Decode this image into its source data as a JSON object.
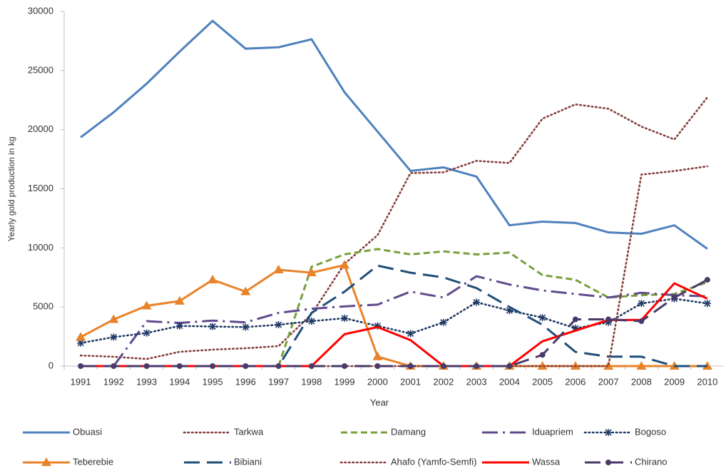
{
  "chart_data": {
    "type": "line",
    "x_label": "Year",
    "y_label": "Yearly gold production in kg",
    "categories": [
      "1991",
      "1992",
      "1993",
      "1994",
      "1995",
      "1996",
      "1997",
      "1998",
      "1999",
      "2000",
      "2001",
      "2002",
      "2003",
      "2004",
      "2005",
      "2006",
      "2007",
      "2008",
      "2009",
      "2010"
    ],
    "ylim": [
      0,
      30000
    ],
    "yticks": [
      0,
      5000,
      10000,
      15000,
      20000,
      25000,
      30000
    ],
    "grid": false,
    "legend": "bottom",
    "series": [
      {
        "name": "Obuasi",
        "color": "#4f81bd",
        "dash": "solid",
        "marker": "none",
        "values": [
          19350,
          21470,
          23890,
          26600,
          29200,
          26850,
          26970,
          27640,
          23160,
          19840,
          16510,
          16810,
          16030,
          11910,
          12220,
          12100,
          11310,
          11190,
          11910,
          9920
        ]
      },
      {
        "name": "Tarkwa",
        "color": "#843c39",
        "dash": "dotted",
        "marker": "none",
        "values": [
          900,
          790,
          600,
          1210,
          1390,
          1510,
          1690,
          4400,
          8650,
          11070,
          16330,
          16390,
          17360,
          17180,
          20930,
          22140,
          21770,
          20260,
          19170,
          22740
        ]
      },
      {
        "name": "Damang",
        "color": "#77a03a",
        "dash": "dashed",
        "marker": "none",
        "values": [
          null,
          null,
          null,
          null,
          null,
          null,
          0,
          8400,
          9450,
          9900,
          9450,
          9700,
          9450,
          9600,
          7700,
          7300,
          5800,
          6000,
          6100,
          7100
        ]
      },
      {
        "name": "Iduapriem",
        "color": "#5f4b8b",
        "dash": "dashdot",
        "marker": "none",
        "values": [
          null,
          0,
          3800,
          3650,
          3850,
          3700,
          4500,
          4850,
          5050,
          5200,
          6300,
          5800,
          7600,
          6900,
          6400,
          6100,
          5800,
          6200,
          6000,
          5900
        ]
      },
      {
        "name": "Bogoso",
        "color": "#1f3864",
        "dash": "dotted",
        "marker": "star",
        "values": [
          1950,
          2450,
          2800,
          3400,
          3350,
          3300,
          3500,
          3800,
          4050,
          3400,
          2750,
          3700,
          5400,
          4700,
          4100,
          3200,
          3700,
          5300,
          5700,
          5300
        ]
      },
      {
        "name": "Teberebie",
        "color": "#e8832a",
        "dash": "solid",
        "marker": "triangle",
        "values": [
          2450,
          3950,
          5100,
          5500,
          7300,
          6300,
          8150,
          7900,
          8550,
          800,
          0,
          0,
          0,
          0,
          0,
          0,
          0,
          0,
          0,
          0
        ]
      },
      {
        "name": "Bibiani",
        "color": "#1f4e79",
        "dash": "longdash",
        "marker": "none",
        "values": [
          0,
          0,
          0,
          0,
          0,
          0,
          0,
          4500,
          6300,
          8500,
          7900,
          7500,
          6600,
          5000,
          3500,
          1200,
          800,
          800,
          0,
          0
        ]
      },
      {
        "name": "Ahafo (Yamfo-Semfi)",
        "color": "#843c39",
        "dash": "dotted",
        "marker": "none",
        "values": [
          0,
          0,
          0,
          0,
          0,
          0,
          0,
          0,
          0,
          0,
          0,
          0,
          0,
          0,
          0,
          0,
          0,
          16200,
          16500,
          16900
        ]
      },
      {
        "name": "Wassa",
        "color": "#ff0000",
        "dash": "solid",
        "marker": "none",
        "values": [
          0,
          0,
          0,
          0,
          0,
          0,
          0,
          0,
          2700,
          3300,
          2200,
          0,
          0,
          0,
          2100,
          3000,
          3900,
          3900,
          7000,
          5700
        ]
      },
      {
        "name": "Chirano",
        "color": "#4a3a6a",
        "dash": "longdash",
        "marker": "circle",
        "values": [
          0,
          0,
          0,
          0,
          0,
          0,
          0,
          0,
          0,
          0,
          0,
          0,
          0,
          0,
          950,
          3950,
          3950,
          3800,
          5800,
          7300
        ]
      }
    ]
  }
}
